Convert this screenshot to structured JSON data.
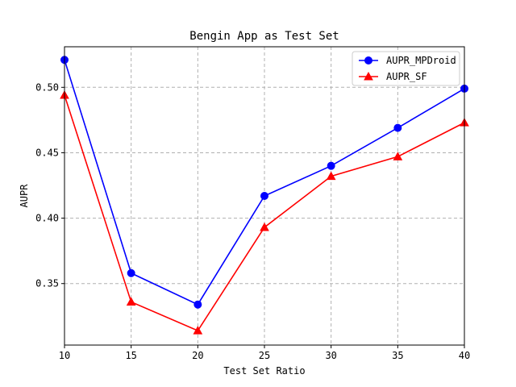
{
  "chart_data": {
    "type": "line",
    "title": "Bengin App as Test Set",
    "xlabel": "Test Set Ratio",
    "ylabel": "AUPR",
    "x": [
      10,
      15,
      20,
      25,
      30,
      35,
      40
    ],
    "xlim": [
      10,
      40
    ],
    "ylim": [
      0.303,
      0.531
    ],
    "xticks": [
      10,
      15,
      20,
      25,
      30,
      35,
      40
    ],
    "yticks": [
      0.35,
      0.4,
      0.45,
      0.5
    ],
    "ytick_labels": [
      "0.35",
      "0.40",
      "0.45",
      "0.50"
    ],
    "grid": true,
    "legend_position": "top-right",
    "series": [
      {
        "name": "AUPR_MPDroid",
        "color": "#0000ff",
        "marker": "circle",
        "values": [
          0.521,
          0.358,
          0.334,
          0.417,
          0.44,
          0.469,
          0.499
        ]
      },
      {
        "name": "AUPR_SF",
        "color": "#ff0000",
        "marker": "triangle",
        "values": [
          0.494,
          0.336,
          0.314,
          0.393,
          0.432,
          0.447,
          0.473
        ]
      }
    ]
  }
}
